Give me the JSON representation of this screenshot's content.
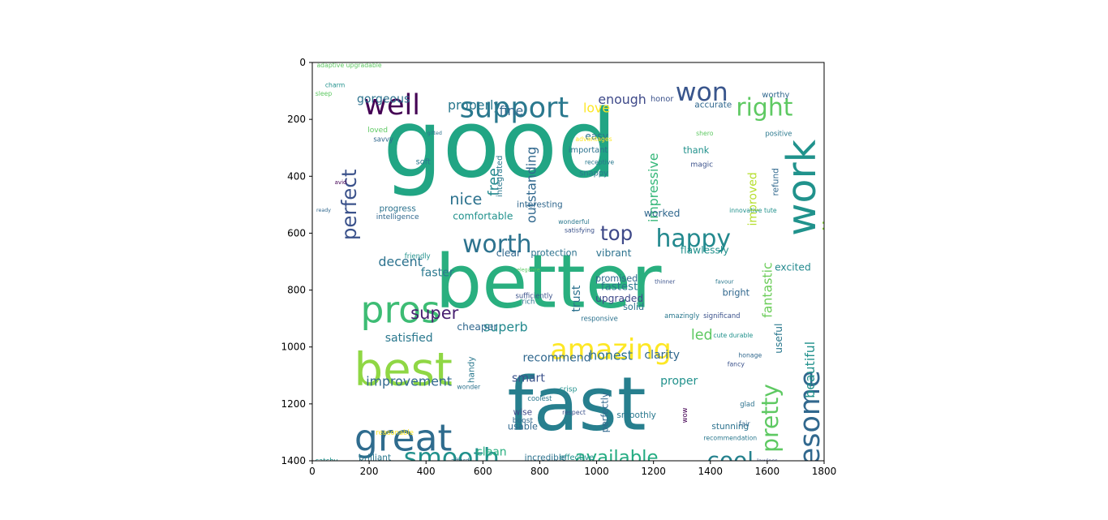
{
  "chart_data": {
    "type": "wordcloud-image",
    "title": "",
    "xlabel": "",
    "ylabel": "",
    "xlim": [
      0,
      1800
    ],
    "ylim": [
      1400,
      0
    ],
    "xticks": [
      0,
      200,
      400,
      600,
      800,
      1000,
      1200,
      1400,
      1600,
      1800
    ],
    "yticks": [
      0,
      200,
      400,
      600,
      800,
      1000,
      1200,
      1400
    ],
    "words": [
      {
        "text": "good",
        "x": 660,
        "y": 290,
        "size": 330,
        "color": "#21a584",
        "rot": 0
      },
      {
        "text": "better",
        "x": 830,
        "y": 770,
        "size": 260,
        "color": "#29af7f",
        "rot": 0
      },
      {
        "text": "fast",
        "x": 930,
        "y": 1200,
        "size": 260,
        "color": "#277f8e",
        "rot": 0
      },
      {
        "text": "best",
        "x": 320,
        "y": 1080,
        "size": 160,
        "color": "#8fd744",
        "rot": 0
      },
      {
        "text": "great",
        "x": 320,
        "y": 1320,
        "size": 130,
        "color": "#2f6c8e",
        "rot": 0
      },
      {
        "text": "pros",
        "x": 310,
        "y": 870,
        "size": 130,
        "color": "#3dbc74",
        "rot": 0
      },
      {
        "text": "work",
        "x": 1720,
        "y": 440,
        "size": 140,
        "color": "#20928c",
        "rot": -90
      },
      {
        "text": "awesome",
        "x": 1750,
        "y": 1320,
        "size": 100,
        "color": "#31688e",
        "rot": -90
      },
      {
        "text": "amazing",
        "x": 1050,
        "y": 1010,
        "size": 100,
        "color": "#fde725",
        "rot": 0
      },
      {
        "text": "support",
        "x": 710,
        "y": 160,
        "size": 100,
        "color": "#2a788e",
        "rot": 0
      },
      {
        "text": "well",
        "x": 280,
        "y": 150,
        "size": 100,
        "color": "#440154",
        "rot": 0
      },
      {
        "text": "won",
        "x": 1370,
        "y": 105,
        "size": 90,
        "color": "#39558c",
        "rot": 0
      },
      {
        "text": "right",
        "x": 1590,
        "y": 160,
        "size": 85,
        "color": "#5ec962",
        "rot": 0
      },
      {
        "text": "smooth",
        "x": 490,
        "y": 1390,
        "size": 90,
        "color": "#21918c",
        "rot": 0
      },
      {
        "text": "worth",
        "x": 650,
        "y": 640,
        "size": 85,
        "color": "#2c728e",
        "rot": 0
      },
      {
        "text": "happy",
        "x": 1340,
        "y": 620,
        "size": 85,
        "color": "#23898e",
        "rot": 0
      },
      {
        "text": "cool",
        "x": 1470,
        "y": 1400,
        "size": 80,
        "color": "#26828e",
        "rot": 0
      },
      {
        "text": "pretty",
        "x": 1610,
        "y": 1250,
        "size": 80,
        "color": "#5ec962",
        "rot": -90
      },
      {
        "text": "excellent",
        "x": 1830,
        "y": 600,
        "size": 75,
        "color": "#90d743",
        "rot": -90
      },
      {
        "text": "perfect",
        "x": 130,
        "y": 500,
        "size": 70,
        "color": "#3b528b",
        "rot": -90
      },
      {
        "text": "available",
        "x": 1070,
        "y": 1390,
        "size": 65,
        "color": "#25ac82",
        "rot": 0
      },
      {
        "text": "super",
        "x": 430,
        "y": 880,
        "size": 60,
        "color": "#482071",
        "rot": 0
      },
      {
        "text": "top",
        "x": 1070,
        "y": 600,
        "size": 70,
        "color": "#3e4989",
        "rot": 0
      },
      {
        "text": "improvement",
        "x": 340,
        "y": 1120,
        "size": 45,
        "color": "#31688e",
        "rot": 0
      },
      {
        "text": "decent",
        "x": 310,
        "y": 700,
        "size": 45,
        "color": "#2c728e",
        "rot": 0
      },
      {
        "text": "satisfied",
        "x": 340,
        "y": 970,
        "size": 40,
        "color": "#2a788e",
        "rot": 0
      },
      {
        "text": "nice",
        "x": 540,
        "y": 480,
        "size": 55,
        "color": "#2c728e",
        "rot": 0
      },
      {
        "text": "free",
        "x": 640,
        "y": 420,
        "size": 50,
        "color": "#23898e",
        "rot": -90
      },
      {
        "text": "outstanding",
        "x": 770,
        "y": 430,
        "size": 45,
        "color": "#31688e",
        "rot": -90
      },
      {
        "text": "impressive",
        "x": 1200,
        "y": 440,
        "size": 45,
        "color": "#35b779",
        "rot": -90
      },
      {
        "text": "improved",
        "x": 1550,
        "y": 480,
        "size": 40,
        "color": "#b5de2b",
        "rot": -90
      },
      {
        "text": "fantastic",
        "x": 1600,
        "y": 800,
        "size": 45,
        "color": "#6ccd5a",
        "rot": -90
      },
      {
        "text": "beautiful",
        "x": 1750,
        "y": 1080,
        "size": 45,
        "color": "#21918c",
        "rot": -90
      },
      {
        "text": "enough",
        "x": 1090,
        "y": 130,
        "size": 45,
        "color": "#3e4989",
        "rot": 0
      },
      {
        "text": "properly",
        "x": 570,
        "y": 150,
        "size": 45,
        "color": "#2a788e",
        "rot": 0
      },
      {
        "text": "gorgeous",
        "x": 250,
        "y": 130,
        "size": 40,
        "color": "#2c728e",
        "rot": 0
      },
      {
        "text": "fine",
        "x": 700,
        "y": 170,
        "size": 45,
        "color": "#31688e",
        "rot": 0
      },
      {
        "text": "love",
        "x": 1000,
        "y": 160,
        "size": 45,
        "color": "#fde725",
        "rot": 0
      },
      {
        "text": "superb",
        "x": 680,
        "y": 930,
        "size": 45,
        "color": "#23898e",
        "rot": 0
      },
      {
        "text": "honest",
        "x": 1050,
        "y": 1030,
        "size": 45,
        "color": "#2c728e",
        "rot": 0
      },
      {
        "text": "recommend",
        "x": 860,
        "y": 1040,
        "size": 40,
        "color": "#31688e",
        "rot": 0
      },
      {
        "text": "led",
        "x": 1370,
        "y": 960,
        "size": 50,
        "color": "#5ec962",
        "rot": 0
      },
      {
        "text": "proper",
        "x": 1290,
        "y": 1120,
        "size": 40,
        "color": "#21918c",
        "rot": 0
      },
      {
        "text": "clarity",
        "x": 1230,
        "y": 1030,
        "size": 40,
        "color": "#31688e",
        "rot": 0
      },
      {
        "text": "fastest",
        "x": 1080,
        "y": 790,
        "size": 38,
        "color": "#2a788e",
        "rot": 0
      },
      {
        "text": "promised",
        "x": 1070,
        "y": 760,
        "size": 32,
        "color": "#31688e",
        "rot": 0
      },
      {
        "text": "upgraded",
        "x": 1080,
        "y": 830,
        "size": 35,
        "color": "#3e4989",
        "rot": 0
      },
      {
        "text": "vibrant",
        "x": 1060,
        "y": 670,
        "size": 35,
        "color": "#2c728e",
        "rot": 0
      },
      {
        "text": "flawlessly",
        "x": 1380,
        "y": 660,
        "size": 35,
        "color": "#21918c",
        "rot": 0
      },
      {
        "text": "excited",
        "x": 1690,
        "y": 720,
        "size": 35,
        "color": "#23898e",
        "rot": 0
      },
      {
        "text": "worked",
        "x": 1230,
        "y": 530,
        "size": 35,
        "color": "#31688e",
        "rot": 0
      },
      {
        "text": "clear",
        "x": 690,
        "y": 670,
        "size": 35,
        "color": "#31688e",
        "rot": 0
      },
      {
        "text": "protection",
        "x": 850,
        "y": 670,
        "size": 32,
        "color": "#2c728e",
        "rot": 0
      },
      {
        "text": "comfortable",
        "x": 600,
        "y": 540,
        "size": 35,
        "color": "#21918c",
        "rot": 0
      },
      {
        "text": "faster",
        "x": 440,
        "y": 740,
        "size": 40,
        "color": "#2a788e",
        "rot": 0
      },
      {
        "text": "trust",
        "x": 930,
        "y": 830,
        "size": 40,
        "color": "#2c728e",
        "rot": -90
      },
      {
        "text": "cheaper",
        "x": 580,
        "y": 930,
        "size": 35,
        "color": "#31688e",
        "rot": 0
      },
      {
        "text": "smart",
        "x": 760,
        "y": 1110,
        "size": 40,
        "color": "#3b528b",
        "rot": 0
      },
      {
        "text": "usable",
        "x": 740,
        "y": 1280,
        "size": 32,
        "color": "#31688e",
        "rot": 0
      },
      {
        "text": "clean",
        "x": 630,
        "y": 1370,
        "size": 40,
        "color": "#29af7f",
        "rot": 0
      },
      {
        "text": "brilliant",
        "x": 220,
        "y": 1390,
        "size": 30,
        "color": "#2a788e",
        "rot": 0
      },
      {
        "text": "effective",
        "x": 930,
        "y": 1390,
        "size": 28,
        "color": "#21918c",
        "rot": 0
      },
      {
        "text": "incredible",
        "x": 820,
        "y": 1390,
        "size": 30,
        "color": "#2c728e",
        "rot": 0
      },
      {
        "text": "useful",
        "x": 1640,
        "y": 970,
        "size": 35,
        "color": "#2a788e",
        "rot": -90
      },
      {
        "text": "solid",
        "x": 1130,
        "y": 860,
        "size": 32,
        "color": "#2c728e",
        "rot": 0
      },
      {
        "text": "bright",
        "x": 1490,
        "y": 810,
        "size": 32,
        "color": "#31688e",
        "rot": 0
      },
      {
        "text": "stunning",
        "x": 1470,
        "y": 1280,
        "size": 30,
        "color": "#2c728e",
        "rot": 0
      },
      {
        "text": "smoothly",
        "x": 1140,
        "y": 1240,
        "size": 30,
        "color": "#2a788e",
        "rot": 0
      },
      {
        "text": "perfectly",
        "x": 1030,
        "y": 1230,
        "size": 32,
        "color": "#31688e",
        "rot": -90
      },
      {
        "text": "easy",
        "x": 1000,
        "y": 260,
        "size": 35,
        "color": "#2c728e",
        "rot": 0
      },
      {
        "text": "thank",
        "x": 1350,
        "y": 310,
        "size": 32,
        "color": "#21918c",
        "rot": 0
      },
      {
        "text": "interesting",
        "x": 800,
        "y": 500,
        "size": 30,
        "color": "#31688e",
        "rot": 0
      },
      {
        "text": "progress",
        "x": 300,
        "y": 515,
        "size": 30,
        "color": "#2c728e",
        "rot": 0
      },
      {
        "text": "intelligence",
        "x": 300,
        "y": 545,
        "size": 26,
        "color": "#31688e",
        "rot": 0
      },
      {
        "text": "accurate",
        "x": 1410,
        "y": 150,
        "size": 30,
        "color": "#31688e",
        "rot": 0
      },
      {
        "text": "honor",
        "x": 1230,
        "y": 130,
        "size": 28,
        "color": "#3b528b",
        "rot": 0
      },
      {
        "text": "worthy",
        "x": 1630,
        "y": 115,
        "size": 28,
        "color": "#31688e",
        "rot": 0
      },
      {
        "text": "positive",
        "x": 1640,
        "y": 250,
        "size": 24,
        "color": "#2a788e",
        "rot": 0
      },
      {
        "text": "refund",
        "x": 1630,
        "y": 420,
        "size": 30,
        "color": "#31688e",
        "rot": -90
      },
      {
        "text": "magic",
        "x": 1370,
        "y": 360,
        "size": 26,
        "color": "#3b528b",
        "rot": 0
      },
      {
        "text": "snappy",
        "x": 990,
        "y": 390,
        "size": 28,
        "color": "#2a788e",
        "rot": 0
      },
      {
        "text": "important",
        "x": 970,
        "y": 310,
        "size": 28,
        "color": "#2c728e",
        "rot": 0
      },
      {
        "text": "integrated",
        "x": 660,
        "y": 400,
        "size": 28,
        "color": "#2a788e",
        "rot": -90
      },
      {
        "text": "soft",
        "x": 390,
        "y": 350,
        "size": 28,
        "color": "#2a788e",
        "rot": 0
      },
      {
        "text": "handy",
        "x": 560,
        "y": 1080,
        "size": 30,
        "color": "#2a788e",
        "rot": -90
      },
      {
        "text": "wise",
        "x": 740,
        "y": 1230,
        "size": 30,
        "color": "#3e4989",
        "rot": 0
      },
      {
        "text": "boost",
        "x": 740,
        "y": 1260,
        "size": 26,
        "color": "#31688e",
        "rot": 0
      },
      {
        "text": "coolest",
        "x": 800,
        "y": 1180,
        "size": 24,
        "color": "#2a788e",
        "rot": 0
      },
      {
        "text": "crisp",
        "x": 900,
        "y": 1150,
        "size": 26,
        "color": "#21918c",
        "rot": 0
      },
      {
        "text": "respect",
        "x": 920,
        "y": 1230,
        "size": 22,
        "color": "#3b528b",
        "rot": 0
      },
      {
        "text": "responsive",
        "x": 1010,
        "y": 900,
        "size": 24,
        "color": "#2c728e",
        "rot": 0
      },
      {
        "text": "significand",
        "x": 1440,
        "y": 890,
        "size": 24,
        "color": "#3b528b",
        "rot": 0
      },
      {
        "text": "amazingly",
        "x": 1300,
        "y": 890,
        "size": 24,
        "color": "#2a788e",
        "rot": 0
      },
      {
        "text": "sufficiently",
        "x": 780,
        "y": 820,
        "size": 24,
        "color": "#3b528b",
        "rot": 0
      },
      {
        "text": "rich",
        "x": 760,
        "y": 840,
        "size": 24,
        "color": "#2c728e",
        "rot": 0
      },
      {
        "text": "thinner",
        "x": 1240,
        "y": 770,
        "size": 20,
        "color": "#3b528b",
        "rot": 0
      },
      {
        "text": "favour",
        "x": 1450,
        "y": 770,
        "size": 20,
        "color": "#2a788e",
        "rot": 0
      },
      {
        "text": "cute durable",
        "x": 1480,
        "y": 960,
        "size": 22,
        "color": "#21918c",
        "rot": 0
      },
      {
        "text": "fancy",
        "x": 1490,
        "y": 1060,
        "size": 22,
        "color": "#3b528b",
        "rot": 0
      },
      {
        "text": "honage",
        "x": 1540,
        "y": 1030,
        "size": 22,
        "color": "#31688e",
        "rot": 0
      },
      {
        "text": "glad",
        "x": 1530,
        "y": 1200,
        "size": 24,
        "color": "#2c728e",
        "rot": 0
      },
      {
        "text": "fair",
        "x": 1520,
        "y": 1270,
        "size": 24,
        "color": "#31688e",
        "rot": 0
      },
      {
        "text": "recommendation",
        "x": 1470,
        "y": 1320,
        "size": 22,
        "color": "#2a788e",
        "rot": 0
      },
      {
        "text": "innovative tute",
        "x": 1550,
        "y": 520,
        "size": 22,
        "color": "#21918c",
        "rot": 0
      },
      {
        "text": "loved",
        "x": 230,
        "y": 240,
        "size": 26,
        "color": "#5ec962",
        "rot": 0
      },
      {
        "text": "savvy",
        "x": 250,
        "y": 270,
        "size": 24,
        "color": "#31688e",
        "rot": 0
      },
      {
        "text": "charm",
        "x": 80,
        "y": 80,
        "size": 22,
        "color": "#21918c",
        "rot": 0
      },
      {
        "text": "sleep",
        "x": 40,
        "y": 110,
        "size": 22,
        "color": "#5ec962",
        "rot": 0
      },
      {
        "text": "advantages",
        "x": 990,
        "y": 270,
        "size": 22,
        "color": "#fde725",
        "rot": 0
      },
      {
        "text": "receptive",
        "x": 1010,
        "y": 350,
        "size": 22,
        "color": "#2a788e",
        "rot": 0
      },
      {
        "text": "adaptive upgradable",
        "x": 130,
        "y": 10,
        "size": 22,
        "color": "#5ec962",
        "rot": 0
      },
      {
        "text": "wonderful",
        "x": 920,
        "y": 560,
        "size": 22,
        "color": "#2a788e",
        "rot": 0
      },
      {
        "text": "satisfying",
        "x": 940,
        "y": 590,
        "size": 22,
        "color": "#3b528b",
        "rot": 0
      },
      {
        "text": "friendly",
        "x": 370,
        "y": 680,
        "size": 24,
        "color": "#21918c",
        "rot": 0
      },
      {
        "text": "wonder",
        "x": 550,
        "y": 1140,
        "size": 22,
        "color": "#2c728e",
        "rot": 0
      },
      {
        "text": "reasonable",
        "x": 290,
        "y": 1300,
        "size": 24,
        "color": "#fde725",
        "rot": 0
      },
      {
        "text": "catchy",
        "x": 50,
        "y": 1400,
        "size": 24,
        "color": "#21918c",
        "rot": 0
      },
      {
        "text": "afford",
        "x": 520,
        "y": 1400,
        "size": 22,
        "color": "#2c728e",
        "rot": 0
      },
      {
        "text": "lawless",
        "x": 1600,
        "y": 1400,
        "size": 20,
        "color": "#3b528b",
        "rot": 0
      },
      {
        "text": "wow",
        "x": 1310,
        "y": 1240,
        "size": 24,
        "color": "#440154",
        "rot": -90
      },
      {
        "text": "ready",
        "x": 40,
        "y": 520,
        "size": 18,
        "color": "#31688e",
        "rot": 0
      },
      {
        "text": "avid",
        "x": 100,
        "y": 420,
        "size": 20,
        "color": "#440154",
        "rot": 0
      },
      {
        "text": "shero",
        "x": 1380,
        "y": 250,
        "size": 22,
        "color": "#5ec962",
        "rot": 0
      },
      {
        "text": "elegance",
        "x": 760,
        "y": 730,
        "size": 18,
        "color": "#5ec962",
        "rot": 0
      },
      {
        "text": "gifted",
        "x": 430,
        "y": 250,
        "size": 18,
        "color": "#2c728e",
        "rot": 0
      }
    ]
  }
}
